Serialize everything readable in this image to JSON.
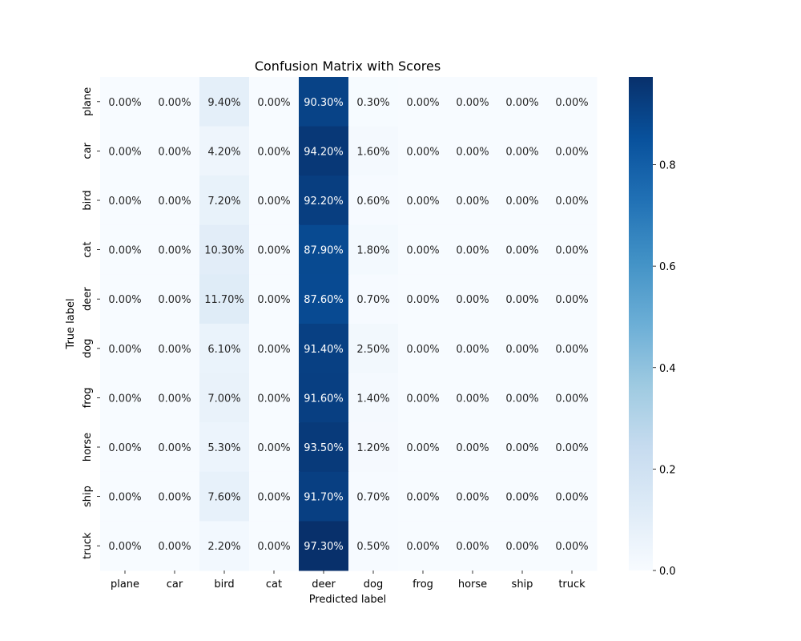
{
  "chart_data": {
    "type": "heatmap",
    "title": "Confusion Matrix with Scores",
    "xlabel": "Predicted label",
    "ylabel": "True label",
    "x_categories": [
      "plane",
      "car",
      "bird",
      "cat",
      "deer",
      "dog",
      "frog",
      "horse",
      "ship",
      "truck"
    ],
    "y_categories": [
      "plane",
      "car",
      "bird",
      "cat",
      "deer",
      "dog",
      "frog",
      "horse",
      "ship",
      "truck"
    ],
    "values": [
      [
        0.0,
        0.0,
        0.094,
        0.0,
        0.903,
        0.003,
        0.0,
        0.0,
        0.0,
        0.0
      ],
      [
        0.0,
        0.0,
        0.042,
        0.0,
        0.942,
        0.016,
        0.0,
        0.0,
        0.0,
        0.0
      ],
      [
        0.0,
        0.0,
        0.072,
        0.0,
        0.922,
        0.006,
        0.0,
        0.0,
        0.0,
        0.0
      ],
      [
        0.0,
        0.0,
        0.103,
        0.0,
        0.879,
        0.018,
        0.0,
        0.0,
        0.0,
        0.0
      ],
      [
        0.0,
        0.0,
        0.117,
        0.0,
        0.876,
        0.007,
        0.0,
        0.0,
        0.0,
        0.0
      ],
      [
        0.0,
        0.0,
        0.061,
        0.0,
        0.914,
        0.025,
        0.0,
        0.0,
        0.0,
        0.0
      ],
      [
        0.0,
        0.0,
        0.07,
        0.0,
        0.916,
        0.014,
        0.0,
        0.0,
        0.0,
        0.0
      ],
      [
        0.0,
        0.0,
        0.053,
        0.0,
        0.935,
        0.012,
        0.0,
        0.0,
        0.0,
        0.0
      ],
      [
        0.0,
        0.0,
        0.076,
        0.0,
        0.917,
        0.007,
        0.0,
        0.0,
        0.0,
        0.0
      ],
      [
        0.0,
        0.0,
        0.022,
        0.0,
        0.973,
        0.005,
        0.0,
        0.0,
        0.0,
        0.0
      ]
    ],
    "cell_labels": [
      [
        "0.00%",
        "0.00%",
        "9.40%",
        "0.00%",
        "90.30%",
        "0.30%",
        "0.00%",
        "0.00%",
        "0.00%",
        "0.00%"
      ],
      [
        "0.00%",
        "0.00%",
        "4.20%",
        "0.00%",
        "94.20%",
        "1.60%",
        "0.00%",
        "0.00%",
        "0.00%",
        "0.00%"
      ],
      [
        "0.00%",
        "0.00%",
        "7.20%",
        "0.00%",
        "92.20%",
        "0.60%",
        "0.00%",
        "0.00%",
        "0.00%",
        "0.00%"
      ],
      [
        "0.00%",
        "0.00%",
        "10.30%",
        "0.00%",
        "87.90%",
        "1.80%",
        "0.00%",
        "0.00%",
        "0.00%",
        "0.00%"
      ],
      [
        "0.00%",
        "0.00%",
        "11.70%",
        "0.00%",
        "87.60%",
        "0.70%",
        "0.00%",
        "0.00%",
        "0.00%",
        "0.00%"
      ],
      [
        "0.00%",
        "0.00%",
        "6.10%",
        "0.00%",
        "91.40%",
        "2.50%",
        "0.00%",
        "0.00%",
        "0.00%",
        "0.00%"
      ],
      [
        "0.00%",
        "0.00%",
        "7.00%",
        "0.00%",
        "91.60%",
        "1.40%",
        "0.00%",
        "0.00%",
        "0.00%",
        "0.00%"
      ],
      [
        "0.00%",
        "0.00%",
        "5.30%",
        "0.00%",
        "93.50%",
        "1.20%",
        "0.00%",
        "0.00%",
        "0.00%",
        "0.00%"
      ],
      [
        "0.00%",
        "0.00%",
        "7.60%",
        "0.00%",
        "91.70%",
        "0.70%",
        "0.00%",
        "0.00%",
        "0.00%",
        "0.00%"
      ],
      [
        "0.00%",
        "0.00%",
        "2.20%",
        "0.00%",
        "97.30%",
        "0.50%",
        "0.00%",
        "0.00%",
        "0.00%",
        "0.00%"
      ]
    ],
    "colorbar": {
      "colormap": "Blues",
      "range": [
        0,
        0.973
      ],
      "ticks": [
        0.0,
        0.2,
        0.4,
        0.6,
        0.8
      ],
      "tick_labels": [
        "0.0",
        "0.2",
        "0.4",
        "0.6",
        "0.8"
      ]
    },
    "grid": false,
    "legend": "colorbar-right"
  }
}
